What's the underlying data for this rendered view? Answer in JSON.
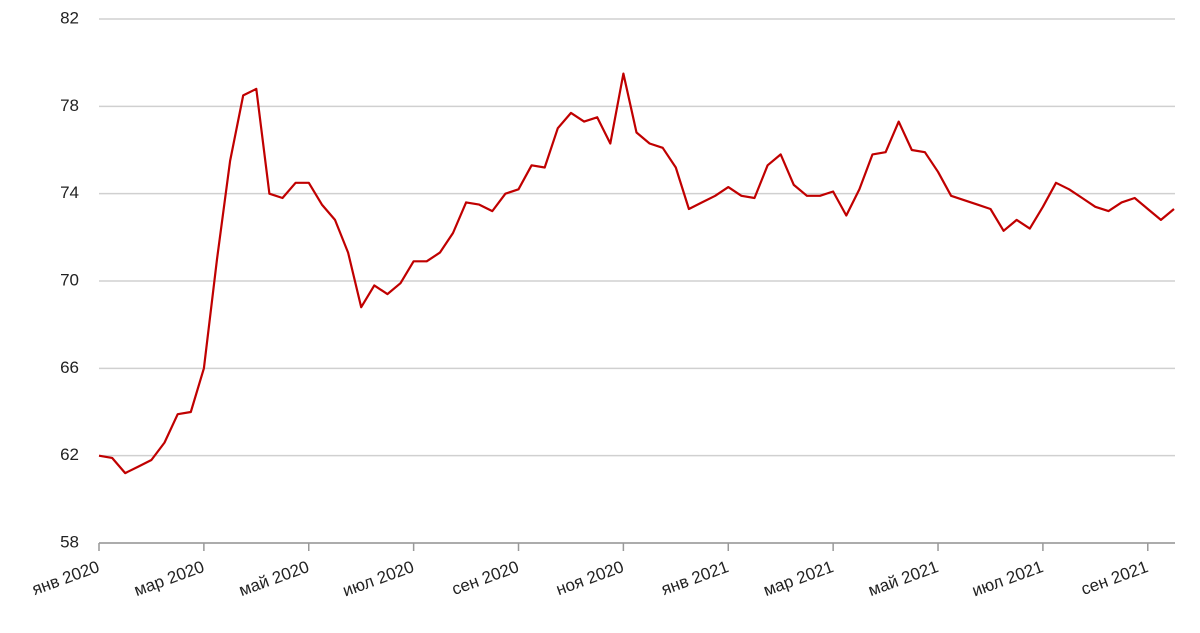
{
  "chart_data": {
    "type": "line",
    "categories": [
      "янв 2020",
      null,
      null,
      null,
      null,
      null,
      null,
      null,
      "мар 2020",
      null,
      null,
      null,
      null,
      null,
      null,
      null,
      "май 2020",
      null,
      null,
      null,
      null,
      null,
      null,
      null,
      "июл 2020",
      null,
      null,
      null,
      null,
      null,
      null,
      null,
      "сен 2020",
      null,
      null,
      null,
      null,
      null,
      null,
      null,
      "ноя 2020",
      null,
      null,
      null,
      null,
      null,
      null,
      null,
      "янв 2021",
      null,
      null,
      null,
      null,
      null,
      null,
      null,
      "мар 2021",
      null,
      null,
      null,
      null,
      null,
      null,
      null,
      "май 2021",
      null,
      null,
      null,
      null,
      null,
      null,
      null,
      "июл 2021",
      null,
      null,
      null,
      null,
      null,
      null,
      null,
      "сен 2021",
      null,
      null
    ],
    "values": [
      62.0,
      61.9,
      61.2,
      61.5,
      61.8,
      62.6,
      63.9,
      64.0,
      66.0,
      71.0,
      75.5,
      78.5,
      78.8,
      74.0,
      73.8,
      74.5,
      74.5,
      73.5,
      72.8,
      71.3,
      68.8,
      69.8,
      69.4,
      69.9,
      70.9,
      70.9,
      71.3,
      72.2,
      73.6,
      73.5,
      73.2,
      74.0,
      74.2,
      75.3,
      75.2,
      77.0,
      77.7,
      77.3,
      77.5,
      76.3,
      79.5,
      76.8,
      76.3,
      76.1,
      75.2,
      73.3,
      73.6,
      73.9,
      74.3,
      73.9,
      73.8,
      75.3,
      75.8,
      74.4,
      73.9,
      73.9,
      74.1,
      73.0,
      74.2,
      75.8,
      75.9,
      77.3,
      76.0,
      75.9,
      75.0,
      73.9,
      73.7,
      73.5,
      73.3,
      72.3,
      72.8,
      72.4,
      73.4,
      74.5,
      74.2,
      73.8,
      73.4,
      73.2,
      73.6,
      73.8,
      73.3,
      72.8,
      73.3
    ],
    "color": "#c00000",
    "ylim": [
      58,
      82
    ],
    "yticks": [
      58,
      62,
      66,
      70,
      74,
      78,
      82
    ],
    "grid": true
  }
}
